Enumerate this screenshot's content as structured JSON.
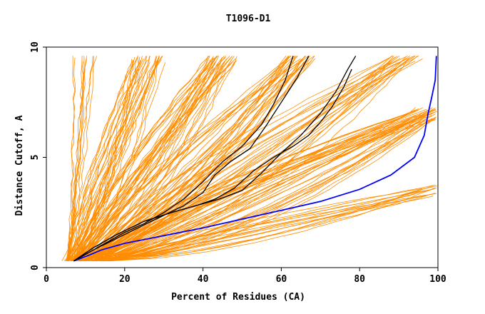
{
  "chart_data": {
    "type": "line",
    "title": "T1096-D1",
    "xlabel": "Percent of Residues (CA)",
    "ylabel": "Distance Cutoff, A",
    "xlim": [
      0,
      100
    ],
    "ylim": [
      0,
      10
    ],
    "x_ticks": [
      0,
      20,
      40,
      60,
      80,
      100
    ],
    "y_ticks": [
      0,
      5,
      10
    ],
    "grid": false,
    "colors": {
      "background_models": "#ff8c00",
      "highlight_blue": "#0000ff",
      "highlight_black": "#000000",
      "axes": "#000000"
    },
    "series": [
      {
        "color": "#0000ff",
        "x": [
          7,
          10,
          14,
          20,
          30,
          40,
          50,
          60,
          70,
          80,
          88,
          94,
          96.5,
          97.5,
          98.5,
          99.3,
          99.6
        ],
        "y": [
          0.3,
          0.5,
          0.8,
          1.1,
          1.45,
          1.8,
          2.2,
          2.6,
          3.0,
          3.55,
          4.2,
          5.0,
          6.0,
          7.0,
          7.8,
          8.5,
          9.6
        ]
      },
      {
        "color": "#000000",
        "x": [
          7,
          10,
          15,
          20,
          25,
          30,
          35,
          40,
          45,
          50,
          55,
          58,
          61,
          63
        ],
        "y": [
          0.3,
          0.6,
          1.1,
          1.6,
          2.0,
          2.5,
          3.1,
          3.9,
          4.8,
          5.5,
          6.5,
          7.4,
          8.5,
          9.6
        ]
      },
      {
        "color": "#000000",
        "x": [
          7,
          12,
          20,
          28,
          35,
          40,
          43,
          47,
          52,
          56,
          60,
          64,
          67
        ],
        "y": [
          0.3,
          0.8,
          1.5,
          2.2,
          2.8,
          3.4,
          4.2,
          4.8,
          5.4,
          6.4,
          7.5,
          8.6,
          9.6
        ]
      },
      {
        "color": "#000000",
        "x": [
          7,
          12,
          18,
          25,
          32,
          38,
          44,
          50,
          55,
          60,
          65,
          70,
          74,
          77,
          79
        ],
        "y": [
          0.3,
          0.9,
          1.5,
          2.1,
          2.5,
          2.8,
          3.1,
          3.5,
          4.3,
          5.2,
          6.0,
          7.0,
          8.0,
          9.0,
          9.6
        ]
      },
      {
        "color": "#000000",
        "x": [
          7,
          12,
          18,
          25,
          32,
          38,
          43,
          48,
          53,
          58,
          63,
          67,
          70,
          73,
          76,
          78
        ],
        "y": [
          0.3,
          0.9,
          1.5,
          2.1,
          2.5,
          2.8,
          3.1,
          3.6,
          4.4,
          5.0,
          5.5,
          6.0,
          6.6,
          7.3,
          8.2,
          9.0
        ]
      }
    ],
    "background_bands": [
      {
        "from": [
          4,
          0.3
        ],
        "to": [
          9,
          9.6
        ],
        "count": 10
      },
      {
        "from": [
          5,
          0.3
        ],
        "to": [
          26,
          9.6
        ],
        "count": 30
      },
      {
        "from": [
          6,
          0.3
        ],
        "to": [
          45,
          9.6
        ],
        "count": 35
      },
      {
        "from": [
          8,
          0.3
        ],
        "to": [
          65,
          9.6
        ],
        "count": 30
      },
      {
        "from": [
          10,
          0.3
        ],
        "to": [
          92,
          9.6
        ],
        "count": 25
      },
      {
        "from": [
          12,
          0.3
        ],
        "to": [
          97,
          7.0
        ],
        "count": 40
      },
      {
        "from": [
          14,
          0.3
        ],
        "to": [
          99,
          3.5
        ],
        "count": 15
      }
    ]
  }
}
